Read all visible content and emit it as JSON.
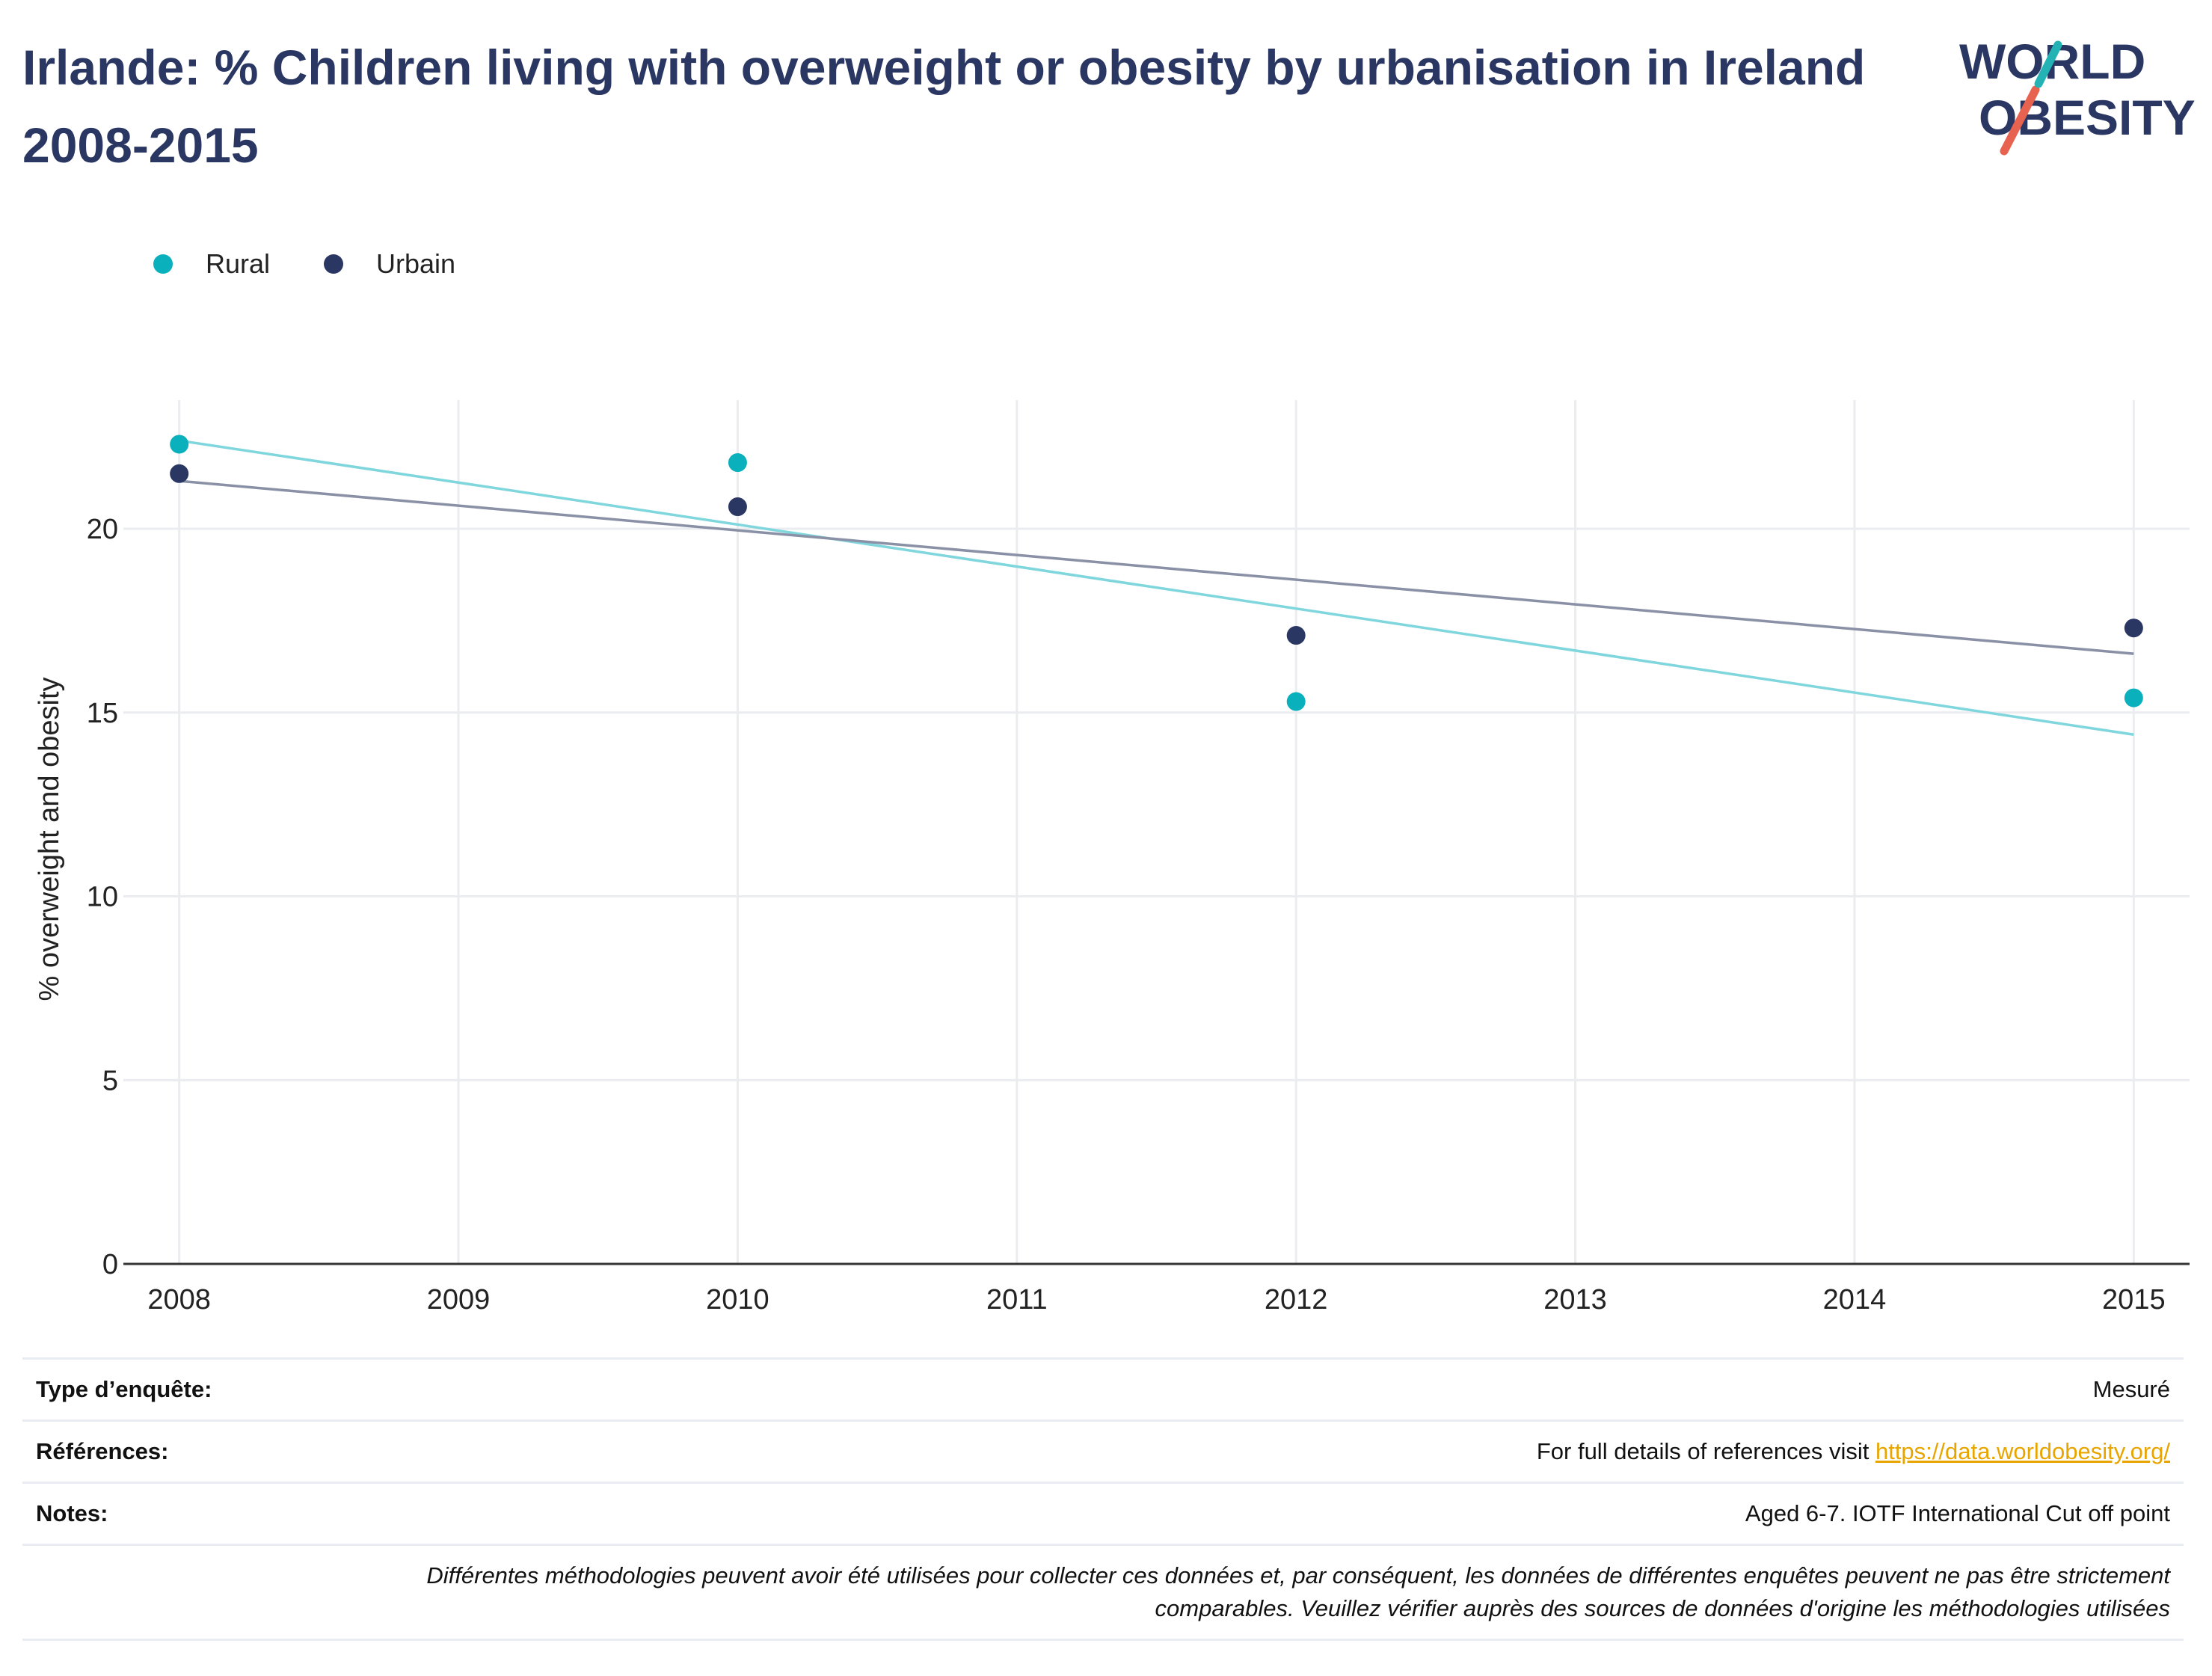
{
  "title": "Irlande: % Children living with overweight or obesity by urbanisation in Ireland 2008-2015",
  "logo": {
    "line1": "WORLD",
    "line2": "OBESITY"
  },
  "colors": {
    "rural": "#0bb0bd",
    "urban": "#2b3763",
    "rural_trend": "#7fd6dd",
    "urban_trend": "#8a91a6",
    "title": "#2b3763",
    "grid": "#ebecf0",
    "link": "#e8a500"
  },
  "legend": [
    {
      "name": "Rural",
      "color": "#0bb0bd"
    },
    {
      "name": "Urbain",
      "color": "#2b3763"
    }
  ],
  "chart_data": {
    "type": "scatter",
    "title": "Irlande: % Children living with overweight or obesity by urbanisation in Ireland 2008-2015",
    "xlabel": "",
    "ylabel": "% overweight and obesity",
    "xlim": [
      2007.8,
      2015.2
    ],
    "ylim": [
      0,
      23.5
    ],
    "x_ticks": [
      2008,
      2009,
      2010,
      2011,
      2012,
      2013,
      2014,
      2015
    ],
    "y_ticks": [
      0,
      5,
      10,
      15,
      20
    ],
    "grid": true,
    "legend_position": "top-left",
    "series": [
      {
        "name": "Rural",
        "color": "#0bb0bd",
        "x": [
          2008,
          2010,
          2012,
          2015
        ],
        "values": [
          22.3,
          21.8,
          15.3,
          15.4
        ],
        "trendline": {
          "x": [
            2008,
            2015
          ],
          "y": [
            22.4,
            14.4
          ]
        }
      },
      {
        "name": "Urbain",
        "color": "#2b3763",
        "x": [
          2008,
          2010,
          2012,
          2015
        ],
        "values": [
          21.5,
          20.6,
          17.1,
          17.3
        ],
        "trendline": {
          "x": [
            2008,
            2015
          ],
          "y": [
            21.3,
            16.6
          ]
        }
      }
    ]
  },
  "info": {
    "survey_label": "Type d’enquête:",
    "survey_value": "Mesuré",
    "references_label": "Références:",
    "references_text": "For full details of references visit ",
    "references_link": "https://data.worldobesity.org/",
    "notes_label": "Notes:",
    "notes_value": "Aged 6-7. IOTF International Cut off point",
    "disclaimer_line1": "Différentes méthodologies peuvent avoir été utilisées pour collecter ces données et, par conséquent, les données de différentes enquêtes peuvent ne pas être strictement",
    "disclaimer_line2": "comparables. Veuillez vérifier auprès des sources de données d'origine les méthodologies utilisées"
  }
}
